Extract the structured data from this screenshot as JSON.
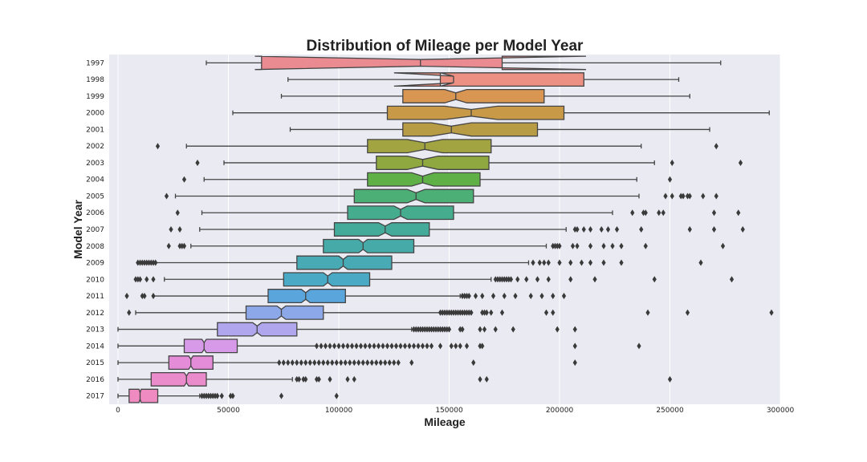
{
  "chart_data": {
    "type": "box",
    "title": "Distribution of Mileage per Model Year",
    "xlabel": "Mileage",
    "ylabel": "Model Year",
    "xlim": [
      -4000,
      300000
    ],
    "x_ticks": [
      0,
      50000,
      100000,
      150000,
      200000,
      250000,
      300000
    ],
    "x_tick_labels": [
      "0",
      "50000",
      "100000",
      "150000",
      "200000",
      "250000",
      "300000"
    ],
    "grid": true,
    "notched": true,
    "categories": [
      "1997",
      "1998",
      "1999",
      "2000",
      "2001",
      "2002",
      "2003",
      "2004",
      "2005",
      "2006",
      "2007",
      "2008",
      "2009",
      "2010",
      "2011",
      "2012",
      "2013",
      "2014",
      "2015",
      "2016",
      "2017"
    ],
    "boxes": [
      {
        "label": "1997",
        "color": "#ea8a91",
        "whisker_low": 40000,
        "q1": 65000,
        "median": 137000,
        "q3": 174000,
        "whisker_high": 273000,
        "notch_low": 62000,
        "notch_high": 212000,
        "outliers": []
      },
      {
        "label": "1998",
        "color": "#eb9083",
        "whisker_low": 77000,
        "q1": 146000,
        "median": 152000,
        "q3": 211000,
        "whisker_high": 254000,
        "notch_low": 125000,
        "notch_high": 146000,
        "outliers": []
      },
      {
        "label": "1999",
        "color": "#d89652",
        "whisker_low": 74000,
        "q1": 129000,
        "median": 153000,
        "q3": 193000,
        "whisker_high": 259000,
        "notch_low": 148000,
        "notch_high": 158000,
        "outliers": []
      },
      {
        "label": "2000",
        "color": "#c89a47",
        "whisker_low": 52000,
        "q1": 122000,
        "median": 160000,
        "q3": 202000,
        "whisker_high": 295000,
        "notch_low": 148000,
        "notch_high": 172000,
        "outliers": []
      },
      {
        "label": "2001",
        "color": "#b89c45",
        "whisker_low": 78000,
        "q1": 129000,
        "median": 151000,
        "q3": 190000,
        "whisker_high": 268000,
        "notch_low": 142000,
        "notch_high": 160000,
        "outliers": []
      },
      {
        "label": "2002",
        "color": "#a1a441",
        "whisker_low": 31000,
        "q1": 113000,
        "median": 139000,
        "q3": 169000,
        "whisker_high": 237000,
        "notch_low": 131000,
        "notch_high": 147000,
        "outliers": [
          18000,
          271000
        ]
      },
      {
        "label": "2003",
        "color": "#8fa840",
        "whisker_low": 48000,
        "q1": 117000,
        "median": 138000,
        "q3": 168000,
        "whisker_high": 243000,
        "notch_low": 131000,
        "notch_high": 145000,
        "outliers": [
          36000,
          251000,
          282000
        ]
      },
      {
        "label": "2004",
        "color": "#5fb046",
        "whisker_low": 39000,
        "q1": 113000,
        "median": 138000,
        "q3": 164000,
        "whisker_high": 235000,
        "notch_low": 133000,
        "notch_high": 143000,
        "outliers": [
          30000,
          250000
        ]
      },
      {
        "label": "2005",
        "color": "#4caf75",
        "whisker_low": 26000,
        "q1": 107000,
        "median": 135000,
        "q3": 161000,
        "whisker_high": 236000,
        "notch_low": 131000,
        "notch_high": 139000,
        "outliers": [
          22000,
          248000,
          251000,
          255000,
          256000,
          258000,
          259000,
          265000,
          271000
        ]
      },
      {
        "label": "2006",
        "color": "#45ad8e",
        "whisker_low": 38000,
        "q1": 104000,
        "median": 128000,
        "q3": 152000,
        "whisker_high": 224000,
        "notch_low": 125000,
        "notch_high": 131000,
        "outliers": [
          27000,
          233000,
          238000,
          239000,
          245000,
          247000,
          270000,
          281000
        ]
      },
      {
        "label": "2007",
        "color": "#44ab9b",
        "whisker_low": 37000,
        "q1": 98000,
        "median": 121000,
        "q3": 141000,
        "whisker_high": 203000,
        "notch_low": 118000,
        "notch_high": 124000,
        "outliers": [
          24000,
          28000,
          207000,
          208000,
          211000,
          214000,
          219000,
          222000,
          226000,
          237000,
          259000,
          270000,
          283000
        ]
      },
      {
        "label": "2008",
        "color": "#46aaa8",
        "whisker_low": 33000,
        "q1": 93000,
        "median": 111000,
        "q3": 134000,
        "whisker_high": 194000,
        "notch_low": 109000,
        "notch_high": 113000,
        "outliers": [
          23000,
          28000,
          29000,
          30000,
          197000,
          198000,
          199000,
          200000,
          206000,
          208000,
          214000,
          220000,
          224000,
          228000,
          239000,
          274000
        ]
      },
      {
        "label": "2009",
        "color": "#48aab5",
        "whisker_low": 17000,
        "q1": 81000,
        "median": 102000,
        "q3": 124000,
        "whisker_high": 186000,
        "notch_low": 100000,
        "notch_high": 104000,
        "outliers": [
          9000,
          10000,
          11000,
          12000,
          13000,
          14000,
          15000,
          16000,
          17000,
          188000,
          191000,
          193000,
          195000,
          200000,
          205000,
          210000,
          214000,
          220000,
          228000,
          264000
        ]
      },
      {
        "label": "2010",
        "color": "#4aa9c5",
        "whisker_low": 21000,
        "q1": 75000,
        "median": 95000,
        "q3": 114000,
        "whisker_high": 169000,
        "notch_low": 93000,
        "notch_high": 97000,
        "outliers": [
          8000,
          9000,
          10000,
          13000,
          16000,
          171000,
          172000,
          173000,
          174000,
          175000,
          176000,
          177000,
          178000,
          181000,
          185000,
          190000,
          195000,
          205000,
          216000,
          243000,
          278000
        ]
      },
      {
        "label": "2011",
        "color": "#5aa5dc",
        "whisker_low": 16000,
        "q1": 68000,
        "median": 85000,
        "q3": 103000,
        "whisker_high": 155000,
        "notch_low": 83000,
        "notch_high": 87000,
        "outliers": [
          4000,
          11000,
          12000,
          16000,
          156000,
          157000,
          158000,
          159000,
          162000,
          165000,
          170000,
          175000,
          180000,
          187000,
          192000,
          197000,
          202000
        ]
      },
      {
        "label": "2012",
        "color": "#8ca8e8",
        "whisker_low": 8000,
        "q1": 58000,
        "median": 74000,
        "q3": 93000,
        "whisker_high": 146000,
        "notch_low": 72000,
        "notch_high": 76000,
        "outliers": [
          5000,
          146000,
          147000,
          148000,
          149000,
          150000,
          151000,
          152000,
          153000,
          154000,
          155000,
          156000,
          157000,
          158000,
          159000,
          160000,
          165000,
          166000,
          167000,
          169000,
          174000,
          194000,
          197000,
          240000,
          258000,
          296000
        ]
      },
      {
        "label": "2013",
        "color": "#b0a6ee",
        "whisker_low": 0,
        "q1": 45000,
        "median": 63000,
        "q3": 81000,
        "whisker_high": 133000,
        "notch_low": 61000,
        "notch_high": 65000,
        "outliers": [
          134000,
          135000,
          136000,
          137000,
          138000,
          139000,
          140000,
          141000,
          142000,
          143000,
          144000,
          145000,
          146000,
          147000,
          148000,
          149000,
          150000,
          155000,
          156000,
          164000,
          166000,
          171000,
          179000,
          199000,
          207000
        ]
      },
      {
        "label": "2014",
        "color": "#d69ae8",
        "whisker_low": 0,
        "q1": 30000,
        "median": 39000,
        "q3": 54000,
        "whisker_high": 90000,
        "notch_low": 38000,
        "notch_high": 40000,
        "outliers": [
          90000,
          92000,
          94000,
          96000,
          98000,
          100000,
          102000,
          104000,
          106000,
          108000,
          110000,
          112000,
          114000,
          116000,
          118000,
          120000,
          122000,
          124000,
          126000,
          128000,
          130000,
          132000,
          134000,
          136000,
          138000,
          140000,
          142000,
          146000,
          151000,
          153000,
          155000,
          158000,
          164000,
          165000,
          207000,
          236000
        ]
      },
      {
        "label": "2015",
        "color": "#e48cd8",
        "whisker_low": 0,
        "q1": 23000,
        "median": 33000,
        "q3": 43000,
        "whisker_high": 73000,
        "notch_low": 32000,
        "notch_high": 34000,
        "outliers": [
          73000,
          75000,
          77000,
          79000,
          81000,
          83000,
          85000,
          87000,
          89000,
          91000,
          93000,
          95000,
          97000,
          99000,
          101000,
          103000,
          105000,
          107000,
          109000,
          111000,
          113000,
          115000,
          117000,
          119000,
          121000,
          123000,
          125000,
          127000,
          133000,
          161000,
          207000
        ]
      },
      {
        "label": "2016",
        "color": "#ea8bcb",
        "whisker_low": 0,
        "q1": 15000,
        "median": 31000,
        "q3": 40000,
        "whisker_high": 79000,
        "notch_low": 30000,
        "notch_high": 32000,
        "outliers": [
          81000,
          82000,
          84000,
          85000,
          90000,
          91000,
          96000,
          104000,
          107000,
          164000,
          167000,
          250000
        ]
      },
      {
        "label": "2017",
        "color": "#f08bc1",
        "whisker_low": 0,
        "q1": 5000,
        "median": 10000,
        "q3": 18000,
        "whisker_high": 37000,
        "notch_low": 9500,
        "notch_high": 10500,
        "outliers": [
          38000,
          39000,
          40000,
          41000,
          42000,
          43000,
          44000,
          45000,
          47000,
          51000,
          52000,
          74000,
          99000
        ]
      }
    ]
  }
}
